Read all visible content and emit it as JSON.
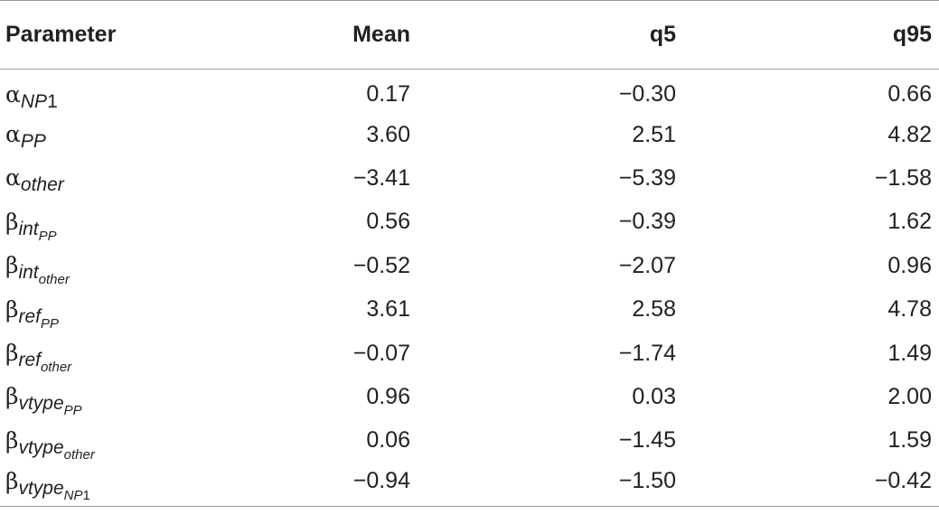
{
  "table": {
    "headers": {
      "parameter": "Parameter",
      "mean": "Mean",
      "q5": "q5",
      "q95": "q95"
    },
    "rows": [
      {
        "greek": "α",
        "sub": "NP",
        "sub_num": "1",
        "subsub": "",
        "subsub_num": "",
        "mean": "0.17",
        "q5": "−0.30",
        "q95": "0.66"
      },
      {
        "greek": "α",
        "sub": "PP",
        "sub_num": "",
        "subsub": "",
        "subsub_num": "",
        "mean": "3.60",
        "q5": "2.51",
        "q95": "4.82"
      },
      {
        "greek": "α",
        "sub": "other",
        "sub_num": "",
        "subsub": "",
        "subsub_num": "",
        "mean": "−3.41",
        "q5": "−5.39",
        "q95": "−1.58"
      },
      {
        "greek": "β",
        "sub": "int",
        "sub_num": "",
        "subsub": "PP",
        "subsub_num": "",
        "mean": "0.56",
        "q5": "−0.39",
        "q95": "1.62"
      },
      {
        "greek": "β",
        "sub": "int",
        "sub_num": "",
        "subsub": "other",
        "subsub_num": "",
        "mean": "−0.52",
        "q5": "−2.07",
        "q95": "0.96"
      },
      {
        "greek": "β",
        "sub": "ref",
        "sub_num": "",
        "subsub": "PP",
        "subsub_num": "",
        "mean": "3.61",
        "q5": "2.58",
        "q95": "4.78"
      },
      {
        "greek": "β",
        "sub": "ref",
        "sub_num": "",
        "subsub": "other",
        "subsub_num": "",
        "mean": "−0.07",
        "q5": "−1.74",
        "q95": "1.49"
      },
      {
        "greek": "β",
        "sub": "vtype",
        "sub_num": "",
        "subsub": "PP",
        "subsub_num": "",
        "mean": "0.96",
        "q5": "0.03",
        "q95": "2.00"
      },
      {
        "greek": "β",
        "sub": "vtype",
        "sub_num": "",
        "subsub": "other",
        "subsub_num": "",
        "mean": "0.06",
        "q5": "−1.45",
        "q95": "1.59"
      },
      {
        "greek": "β",
        "sub": "vtype",
        "sub_num": "",
        "subsub": "NP",
        "subsub_num": "1",
        "mean": "−0.94",
        "q5": "−1.50",
        "q95": "−0.42"
      }
    ]
  }
}
